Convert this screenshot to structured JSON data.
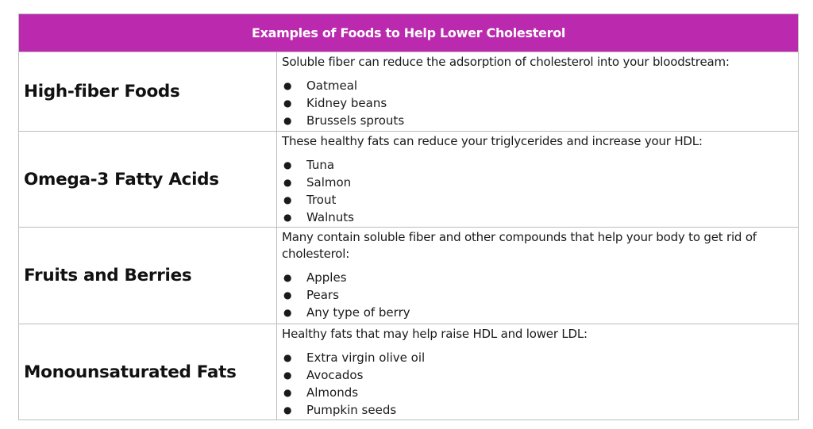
{
  "title": "Examples of Foods to Help Lower Cholesterol",
  "colors": {
    "header_bg": "#bb2aae",
    "header_text": "#ffffff",
    "border": "#bdbdbd"
  },
  "rows": [
    {
      "category": "High-fiber Foods",
      "description": "Soluble fiber can reduce the adsorption of cholesterol into your bloodstream:",
      "items": [
        "Oatmeal",
        "Kidney beans",
        "Brussels sprouts"
      ]
    },
    {
      "category": "Omega-3 Fatty Acids",
      "description": "These healthy fats can reduce your triglycerides and increase your HDL:",
      "items": [
        "Tuna",
        "Salmon",
        "Trout",
        "Walnuts"
      ]
    },
    {
      "category": "Fruits and Berries",
      "description": "Many contain soluble fiber and other compounds that help your body to get rid of cholesterol:",
      "items": [
        "Apples",
        "Pears",
        "Any type of berry"
      ]
    },
    {
      "category": "Monounsaturated Fats",
      "description": "Healthy fats that may help raise HDL and lower LDL:",
      "items": [
        "Extra virgin olive oil",
        "Avocados",
        "Almonds",
        "Pumpkin seeds"
      ]
    }
  ]
}
